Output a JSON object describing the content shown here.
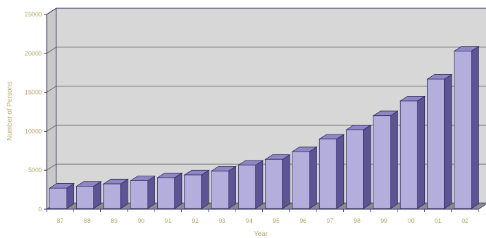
{
  "chart_data": {
    "type": "bar",
    "title": "",
    "xlabel": "Year",
    "ylabel": "Number of Persons",
    "categories": [
      "87",
      "88",
      "89",
      "90",
      "91",
      "92",
      "93",
      "94",
      "95",
      "96",
      "97",
      "98",
      "99",
      "00",
      "01",
      "02"
    ],
    "values": [
      2700,
      2950,
      3250,
      3650,
      4050,
      4400,
      4900,
      5650,
      6400,
      7400,
      9000,
      10200,
      12000,
      13900,
      16700,
      20300
    ],
    "ylim": [
      0,
      25000
    ],
    "yticks": [
      0,
      5000,
      10000,
      15000,
      20000,
      25000
    ],
    "grid": true,
    "legend": "none",
    "colors": {
      "bar_front": "#b3aedb",
      "bar_top": "#8f87c4",
      "bar_side": "#5d5496",
      "bar_edge": "#2e2a5e",
      "wall": "#d7d7d7",
      "floor": "#8c8c8c",
      "gridline": "#6b6b6b",
      "tick_text": "#b8a86a"
    }
  }
}
